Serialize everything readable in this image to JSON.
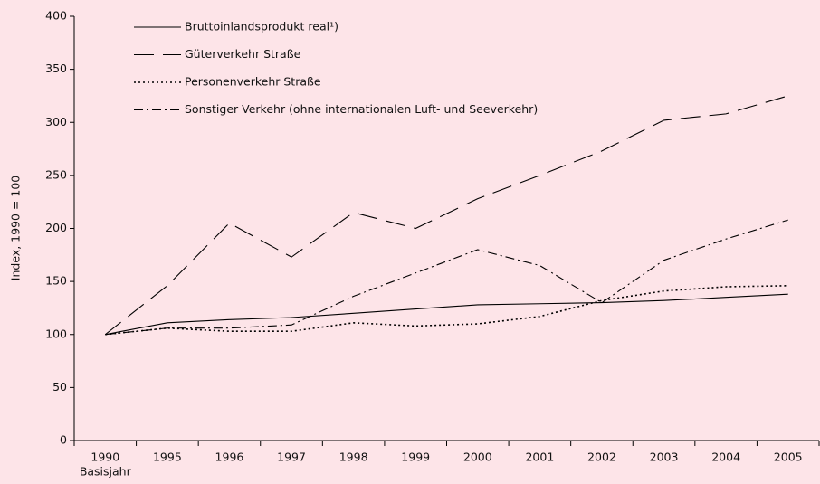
{
  "chart_data": {
    "type": "line",
    "y_label": "Index, 1990 = 100",
    "categories": [
      "1990",
      "1995",
      "1996",
      "1997",
      "1998",
      "1999",
      "2000",
      "2001",
      "2002",
      "2003",
      "2004",
      "2005"
    ],
    "base_label": "Basisjahr",
    "series": [
      {
        "name": "Bruttoinlandsprodukt real¹)",
        "color": "#000000",
        "style": "solid",
        "values": [
          100,
          111,
          114,
          116,
          120,
          124,
          128,
          129,
          130,
          132,
          135,
          138
        ]
      },
      {
        "name": "Güterverkehr Straße",
        "color": "#000000",
        "style": "longdash",
        "values": [
          100,
          146,
          205,
          173,
          215,
          200,
          228,
          250,
          273,
          302,
          308,
          325
        ]
      },
      {
        "name": "Personenverkehr Straße",
        "color": "#000000",
        "style": "dot",
        "values": [
          100,
          106,
          103,
          103,
          111,
          108,
          110,
          117,
          132,
          141,
          145,
          146
        ]
      },
      {
        "name": "Sonstiger Verkehr (ohne internationalen Luft- und Seeverkehr)",
        "color": "#000000",
        "style": "dashdot",
        "values": [
          100,
          106,
          106,
          109,
          136,
          158,
          180,
          165,
          130,
          170,
          190,
          208
        ]
      }
    ],
    "ylim": [
      0,
      400
    ],
    "yticks": [
      0,
      50,
      100,
      150,
      200,
      250,
      300,
      350,
      400
    ],
    "grid": false,
    "legend": "top-left"
  }
}
